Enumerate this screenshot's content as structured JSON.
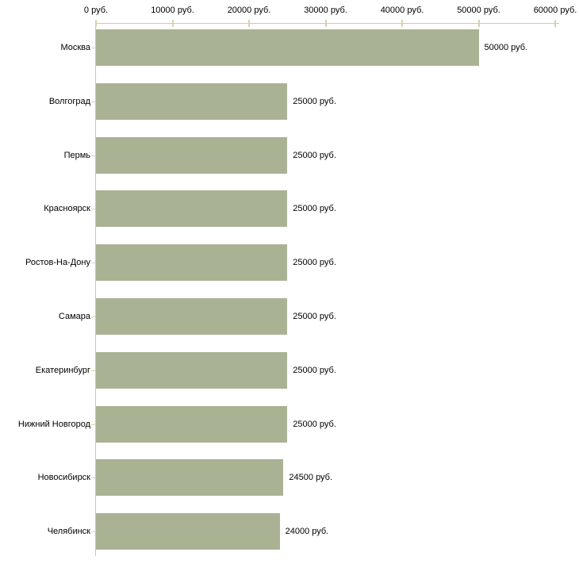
{
  "chart_data": {
    "type": "bar",
    "orientation": "horizontal",
    "title": "",
    "xlabel": "",
    "ylabel": "",
    "unit": "руб.",
    "categories": [
      "Москва",
      "Волгоград",
      "Пермь",
      "Красноярск",
      "Ростов-На-Дону",
      "Самара",
      "Екатеринбург",
      "Нижний Новгород",
      "Новосибирск",
      "Челябинск"
    ],
    "values": [
      50000,
      25000,
      25000,
      25000,
      25000,
      25000,
      25000,
      25000,
      24500,
      24000
    ],
    "value_labels": [
      "50000 руб.",
      "25000 руб.",
      "25000 руб.",
      "25000 руб.",
      "25000 руб.",
      "25000 руб.",
      "25000 руб.",
      "25000 руб.",
      "24500 руб.",
      "24000 руб."
    ],
    "xlim": [
      0,
      60000
    ],
    "x_tick_values": [
      0,
      10000,
      20000,
      30000,
      40000,
      50000,
      60000
    ],
    "x_tick_labels": [
      "0 руб.",
      "10000 руб.",
      "20000 руб.",
      "30000 руб.",
      "40000 руб.",
      "50000 руб.",
      "60000 руб."
    ],
    "grid": false,
    "legend": false,
    "axis_position": "top",
    "colors": {
      "bar": "#a9b293",
      "axis_line": "#c6c6c6",
      "tick_mark": "#d6d1ac",
      "text": "#000000",
      "background": "#ffffff"
    }
  }
}
